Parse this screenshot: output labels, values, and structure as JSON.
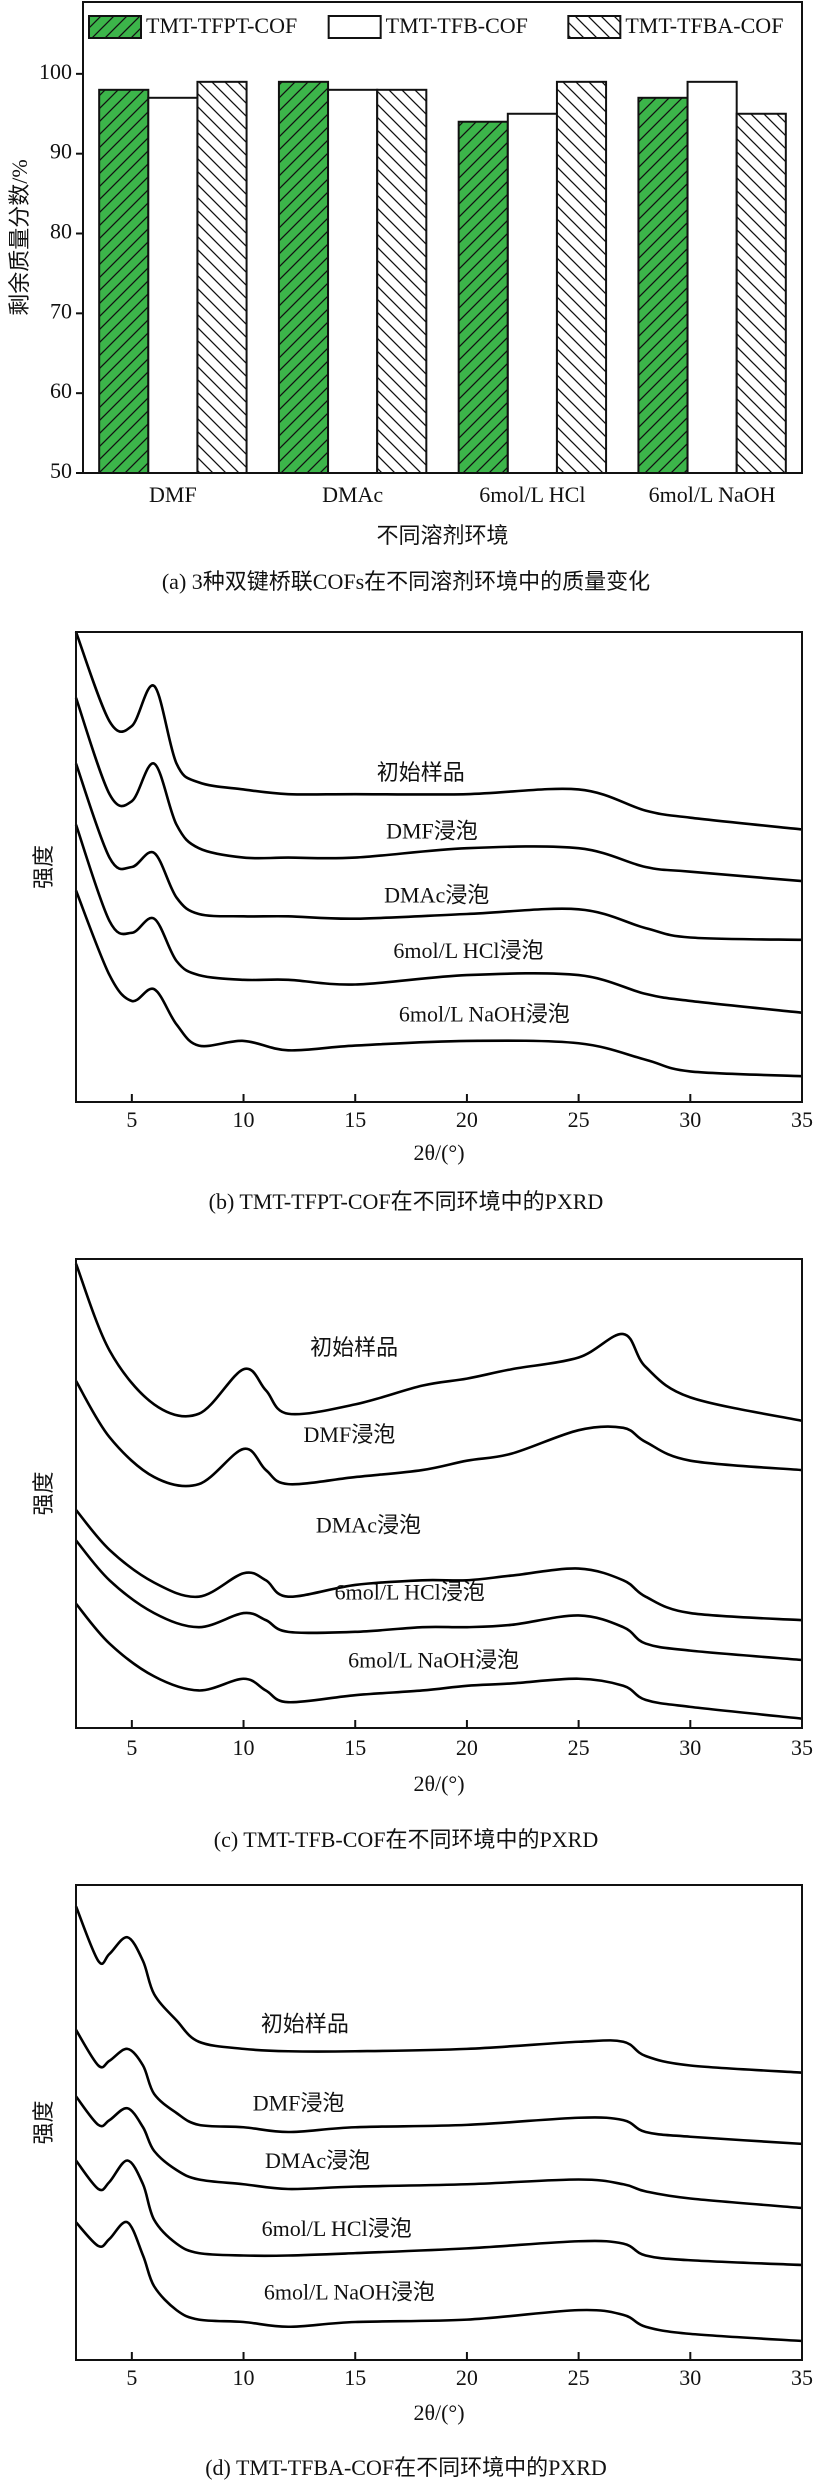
{
  "chart_data": [
    {
      "type": "bar",
      "caption": "(a) 3种双键桥联COFs在不同溶剂环境中的质量变化",
      "ylabel": "剩余质量分数/%",
      "xlabel": "不同溶剂环境",
      "categories": [
        "DMF",
        "DMAc",
        "6mol/L HCl",
        "6mol/L NaOH"
      ],
      "series": [
        {
          "name": "TMT-TFPT-COF",
          "color": "#3cb54a",
          "hatch": "forward-diagonal",
          "values": [
            98,
            99,
            94,
            97
          ]
        },
        {
          "name": "TMT-TFB-COF",
          "color": "#ffffff",
          "hatch": "none",
          "values": [
            97,
            98,
            95,
            99
          ]
        },
        {
          "name": "TMT-TFBA-COF",
          "color": "#ffffff",
          "hatch": "backward-diagonal",
          "values": [
            99,
            98,
            99,
            95
          ]
        }
      ],
      "ylim": [
        50,
        109
      ],
      "yticks": [
        50,
        60,
        70,
        80,
        90,
        100
      ],
      "legend": "top"
    },
    {
      "type": "line",
      "caption": "(b) TMT-TFPT-COF在不同环境中的PXRD",
      "ylabel": "强度",
      "xlabel": "2θ/(°)",
      "x": [
        2.5,
        4,
        5,
        6,
        7,
        8,
        10,
        12,
        15,
        20,
        25,
        28,
        30,
        35
      ],
      "series": [
        {
          "name": "初始样品",
          "color": "#000000",
          "values": [
            100,
            81,
            80,
            88.5,
            72,
            68,
            66.5,
            65.5,
            65.5,
            65.5,
            66.5,
            62,
            60.5,
            58
          ]
        },
        {
          "name": "DMF浸泡",
          "color": "#000000",
          "values": [
            86,
            65.5,
            64,
            72,
            59,
            54,
            52,
            52,
            52,
            54,
            54,
            50,
            49,
            47
          ]
        },
        {
          "name": "DMAc浸泡",
          "color": "#000000",
          "values": [
            72,
            52,
            50,
            53,
            43.5,
            40,
            39.5,
            39.5,
            39,
            40,
            41,
            37,
            35,
            34.5
          ]
        },
        {
          "name": "6mol/L HCl浸泡",
          "color": "#000000",
          "values": [
            59,
            38.5,
            36,
            39,
            30,
            27,
            26,
            26,
            25,
            27,
            27,
            23,
            21.5,
            19
          ]
        },
        {
          "name": "6mol/L NaOH浸泡",
          "color": "#000000",
          "values": [
            45,
            27,
            21.5,
            24,
            16.5,
            12,
            13,
            11,
            12,
            13,
            12.5,
            9,
            6.5,
            5.5
          ]
        }
      ],
      "xlim": [
        2.5,
        35
      ],
      "xticks": [
        5,
        10,
        15,
        20,
        25,
        30,
        35
      ],
      "ylim": [
        0,
        100
      ]
    },
    {
      "type": "line",
      "caption": "(c) TMT-TFB-COF在不同环境中的PXRD",
      "ylabel": "强度",
      "xlabel": "2θ/(°)",
      "x": [
        2.5,
        4,
        6,
        8,
        10,
        11,
        12,
        15,
        18,
        20,
        22,
        25,
        27,
        28,
        30,
        35
      ],
      "series": [
        {
          "name": "初始样品",
          "color": "#000000",
          "values": [
            99,
            80.5,
            69,
            67,
            76.5,
            72,
            67,
            69,
            73,
            74.5,
            76.5,
            79,
            84,
            77,
            70.5,
            65.5
          ]
        },
        {
          "name": "DMF浸泡",
          "color": "#000000",
          "values": [
            74,
            62,
            53.5,
            52,
            59.5,
            55,
            52,
            53.5,
            55,
            57,
            58.5,
            63.5,
            64,
            61,
            57,
            55
          ]
        },
        {
          "name": "DMAc浸泡",
          "color": "#000000",
          "values": [
            46.5,
            38,
            31,
            28,
            33,
            31.5,
            28,
            30.5,
            31.5,
            31.5,
            32.5,
            34,
            31.5,
            28,
            24.5,
            23
          ]
        },
        {
          "name": "6mol/L HCl浸泡",
          "color": "#000000",
          "values": [
            40,
            31.5,
            24.5,
            21.5,
            24.5,
            23,
            20.5,
            20.5,
            21.5,
            21.5,
            22,
            24,
            21.5,
            18,
            16.5,
            14.5
          ]
        },
        {
          "name": "6mol/L NaOH浸泡",
          "color": "#000000",
          "values": [
            26.5,
            18,
            11,
            8,
            10.5,
            8,
            5.5,
            7,
            8,
            9,
            9.5,
            10.5,
            9,
            6,
            4.5,
            2
          ]
        }
      ],
      "xlim": [
        2.5,
        35
      ],
      "xticks": [
        5,
        10,
        15,
        20,
        25,
        30,
        35
      ],
      "ylim": [
        0,
        100
      ]
    },
    {
      "type": "line",
      "caption": "(d) TMT-TFBA-COF在不同环境中的PXRD",
      "ylabel": "强度",
      "xlabel": "2θ/(°)",
      "x": [
        2.5,
        3.5,
        4,
        4.8,
        5.5,
        6,
        7,
        8,
        10,
        12,
        15,
        20,
        25,
        27,
        28,
        30,
        35
      ],
      "series": [
        {
          "name": "初始样品",
          "color": "#000000",
          "values": [
            95.5,
            84,
            85.5,
            89,
            84,
            77,
            71.5,
            67,
            65.5,
            65,
            65,
            65.5,
            67,
            67,
            64,
            62,
            60.5
          ]
        },
        {
          "name": "DMF浸泡",
          "color": "#000000",
          "values": [
            69.5,
            62,
            63,
            65.5,
            62,
            56,
            52,
            49.5,
            49,
            48,
            49,
            49.5,
            51,
            50.5,
            48,
            47,
            45.5
          ]
        },
        {
          "name": "DMAc浸泡",
          "color": "#000000",
          "values": [
            55.5,
            49.5,
            50.5,
            53,
            49,
            44,
            40,
            38,
            37,
            36,
            36.5,
            37,
            38,
            37,
            35.5,
            34,
            32
          ]
        },
        {
          "name": "6mol/L HCl浸泡",
          "color": "#000000",
          "values": [
            42,
            36,
            37.5,
            42,
            37,
            29.5,
            24.5,
            22.5,
            22,
            22,
            22.5,
            23.5,
            25,
            24.5,
            22,
            21,
            20
          ]
        },
        {
          "name": "6mol/L NaOH浸泡",
          "color": "#000000",
          "values": [
            29,
            24,
            25.5,
            29,
            22,
            15.5,
            10.5,
            8.5,
            8,
            7,
            8,
            8.5,
            10.5,
            9.5,
            7,
            5.5,
            4
          ]
        }
      ],
      "xlim": [
        2.5,
        35
      ],
      "xticks": [
        5,
        10,
        15,
        20,
        25,
        30,
        35
      ],
      "ylim": [
        0,
        100
      ]
    }
  ]
}
